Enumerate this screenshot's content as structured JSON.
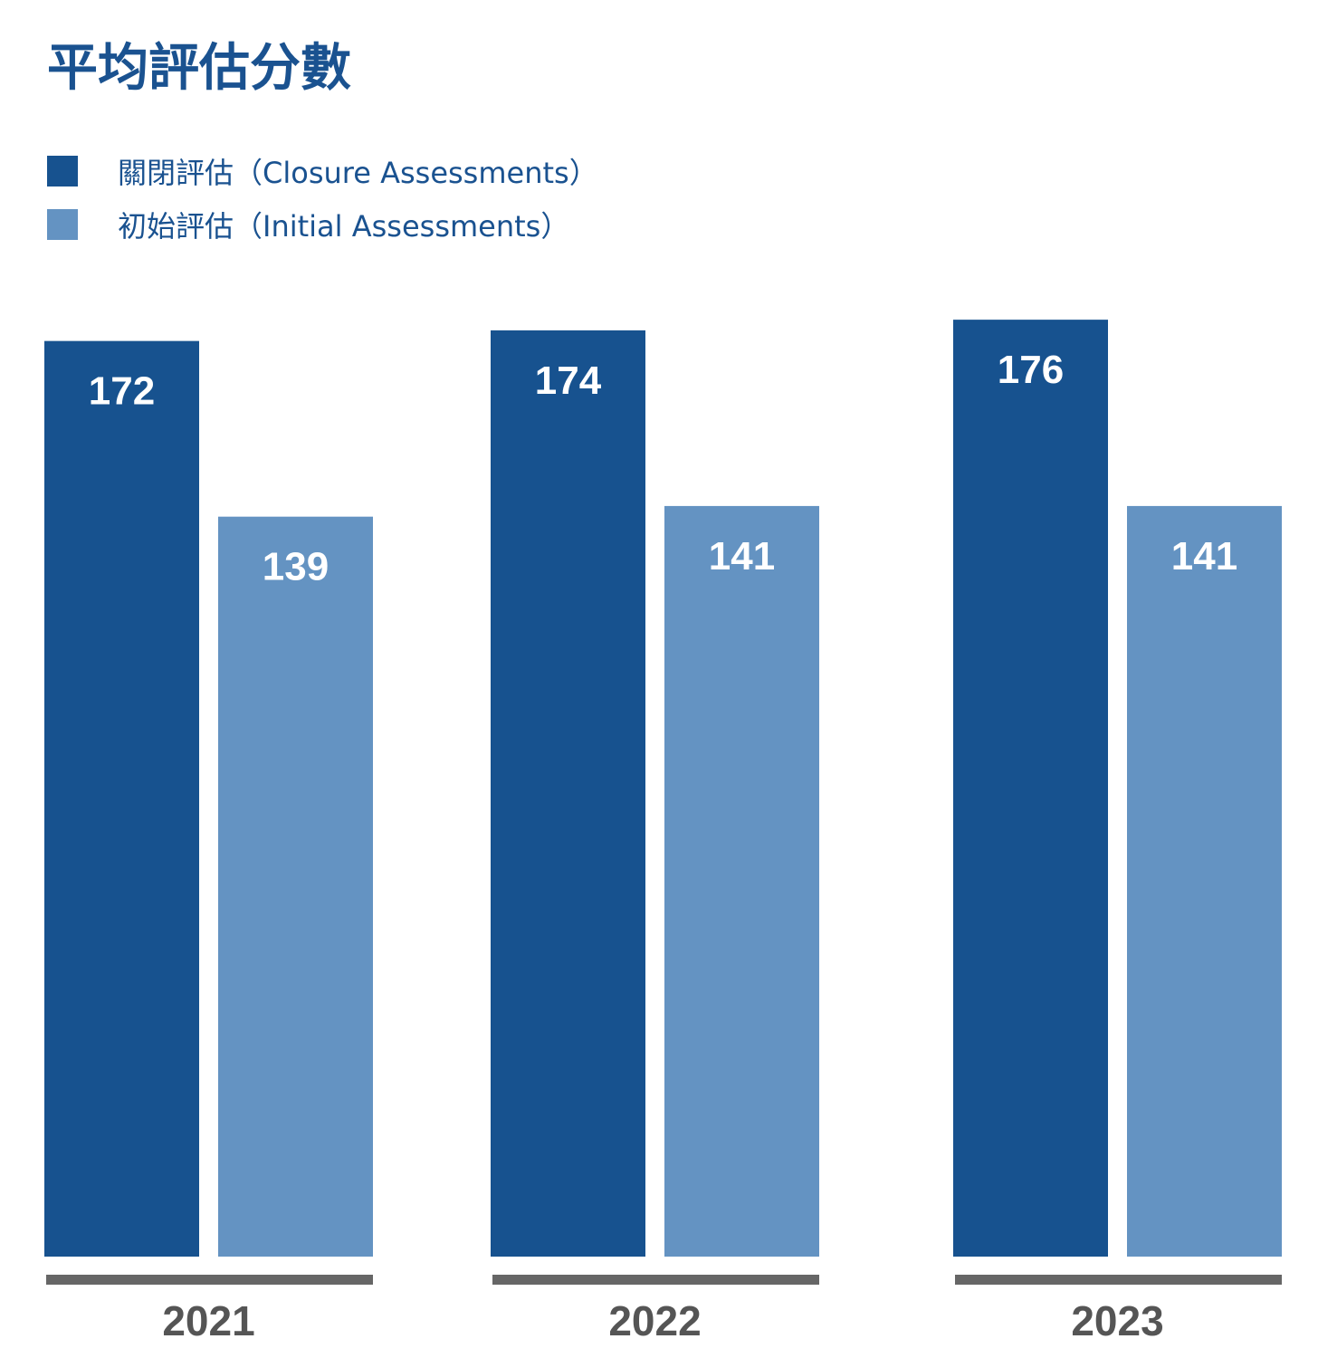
{
  "colors": {
    "closure": "#17528f",
    "initial": "#6493c2",
    "baseline": "#666666"
  },
  "chart_data": {
    "type": "bar",
    "title": "平均評估分數",
    "categories": [
      "2021",
      "2022",
      "2023"
    ],
    "series": [
      {
        "name": "關閉評估（Closure Assessments）",
        "values": [
          172,
          174,
          176
        ]
      },
      {
        "name": "初始評估（Initial Assessments）",
        "values": [
          139,
          141,
          141
        ]
      }
    ],
    "legend_position": "top-left",
    "grid": false,
    "data_labels": true
  }
}
